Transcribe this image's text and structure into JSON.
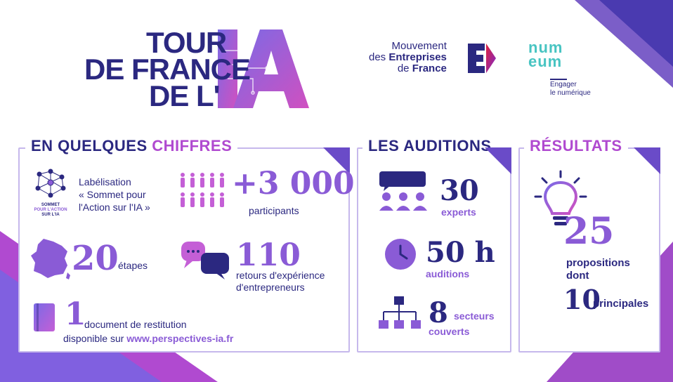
{
  "header": {
    "title_line1": "TOUR",
    "title_line2": "DE FRANCE",
    "title_line3": "DE L'",
    "title_ia": "IA",
    "medef_line1": "Mouvement",
    "medef_line2_a": "des ",
    "medef_line2_b": "Entreprises",
    "medef_line3_a": "de ",
    "medef_line3_b": "France",
    "numeum_line1": "num",
    "numeum_line2": "eum",
    "numeum_sub1": "Engager",
    "numeum_sub2": "le numérique"
  },
  "chiffres": {
    "title_a": "EN QUELQUES ",
    "title_b": "CHIFFRES",
    "sommet_logo_1": "SOMMET",
    "sommet_logo_2": "POUR L'ACTION",
    "sommet_logo_3": "SUR L'IA",
    "label_line1": "Labélisation",
    "label_line2": "« Sommet pour",
    "label_line3": "l'Action sur l'IA »",
    "participants_num": "+3 000",
    "participants_label": "participants",
    "etapes_num": "20",
    "etapes_label": "étapes",
    "retours_num": "110",
    "retours_line1": "retours d'expérience",
    "retours_line2": "d'entrepreneurs",
    "doc_num": "1",
    "doc_line1": "document de restitution",
    "doc_line2_a": "disponible sur ",
    "doc_line2_link": "www.perspectives-ia.fr"
  },
  "auditions": {
    "title": "LES AUDITIONS",
    "experts_num": "30",
    "experts_label": "experts",
    "hours_num": "50 h",
    "hours_label": "auditions",
    "secteurs_num": "8",
    "secteurs_line1": "secteurs",
    "secteurs_line2": "couverts"
  },
  "resultats": {
    "title": "RÉSULTATS",
    "props_num": "25",
    "props_line1": "propositions",
    "props_line2": "dont",
    "main_num": "10",
    "main_label": "principales"
  },
  "colors": {
    "navy": "#2b2880",
    "purple": "#8a5bd6",
    "magenta": "#b04ad0",
    "teal": "#48c4c2",
    "border": "#c6b8ec"
  },
  "icons": [
    "sommet-logo-icon",
    "people-icon",
    "france-map-icon",
    "chat-bubbles-icon",
    "book-icon",
    "speech-audience-icon",
    "clock-icon",
    "org-chart-icon",
    "lightbulb-icon",
    "ai-circuit-icon",
    "medef-logo-icon"
  ]
}
